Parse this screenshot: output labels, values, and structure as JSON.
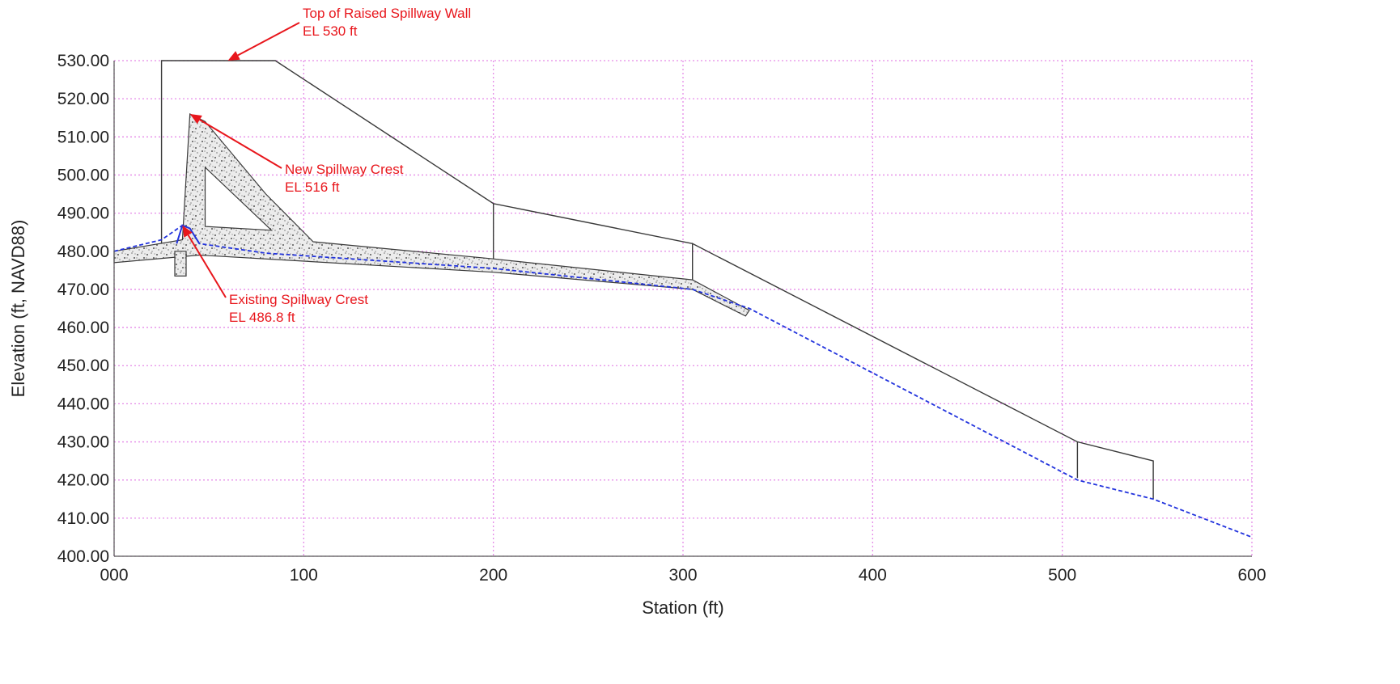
{
  "colors": {
    "grid": "#e58be8",
    "structure": "#3a3a3a",
    "concrete_fill": "#ececec",
    "water_profile": "#2233dd",
    "annotation": "#e8161c",
    "text": "#222222"
  },
  "chart_data": {
    "type": "line",
    "title": "",
    "xlabel": "Station (ft)",
    "ylabel": "Elevation (ft, NAVD88)",
    "xlim": [
      0,
      600
    ],
    "ylim": [
      400,
      530
    ],
    "x_ticks": [
      0,
      100,
      200,
      300,
      400,
      500,
      600
    ],
    "x_tick_labels": [
      "000",
      "100",
      "200",
      "300",
      "400",
      "500",
      "600"
    ],
    "y_ticks": [
      400,
      410,
      420,
      430,
      440,
      450,
      460,
      470,
      480,
      490,
      500,
      510,
      520,
      530
    ],
    "y_tick_labels": [
      "400.00",
      "410.00",
      "420.00",
      "430.00",
      "440.00",
      "450.00",
      "460.00",
      "470.00",
      "480.00",
      "490.00",
      "500.00",
      "510.00",
      "520.00",
      "530.00"
    ],
    "grid": true,
    "grid_style": "dotted",
    "legend": "none",
    "series": [
      {
        "style": "solid-gray",
        "x": [
          25,
          25,
          85,
          200,
          200,
          200,
          305,
          305,
          305,
          508,
          508,
          508,
          548,
          548
        ],
        "y": [
          482,
          530,
          530,
          492.5,
          477.5,
          492.5,
          482,
          472,
          482,
          430,
          420.5,
          430,
          425,
          415
        ]
      },
      {
        "style": "dashed-blue",
        "x": [
          0,
          25,
          36,
          40,
          45,
          80,
          200,
          305,
          335,
          508,
          548,
          600
        ],
        "y": [
          480,
          483,
          486.8,
          486,
          482,
          479.5,
          475.5,
          470,
          465,
          420,
          415,
          405
        ]
      },
      {
        "style": "stippled-concrete",
        "x": [
          0,
          36,
          40,
          48,
          80,
          105,
          200,
          305,
          335,
          333,
          305,
          200,
          45,
          0
        ],
        "y": [
          480,
          483,
          516,
          514,
          495,
          482.5,
          478,
          472.5,
          464.5,
          463,
          470,
          474.5,
          479,
          477
        ]
      }
    ],
    "annotations": [
      {
        "line1": "Top of Raised Spillway Wall",
        "line2": "EL 530 ft",
        "points_to": {
          "x": 60,
          "y": 530
        }
      },
      {
        "line1": "New Spillway Crest",
        "line2": "EL 516 ft",
        "points_to": {
          "x": 40,
          "y": 516
        }
      },
      {
        "line1": "Existing Spillway Crest",
        "line2": "EL 486.8 ft",
        "points_to": {
          "x": 36,
          "y": 486.8
        }
      }
    ]
  }
}
